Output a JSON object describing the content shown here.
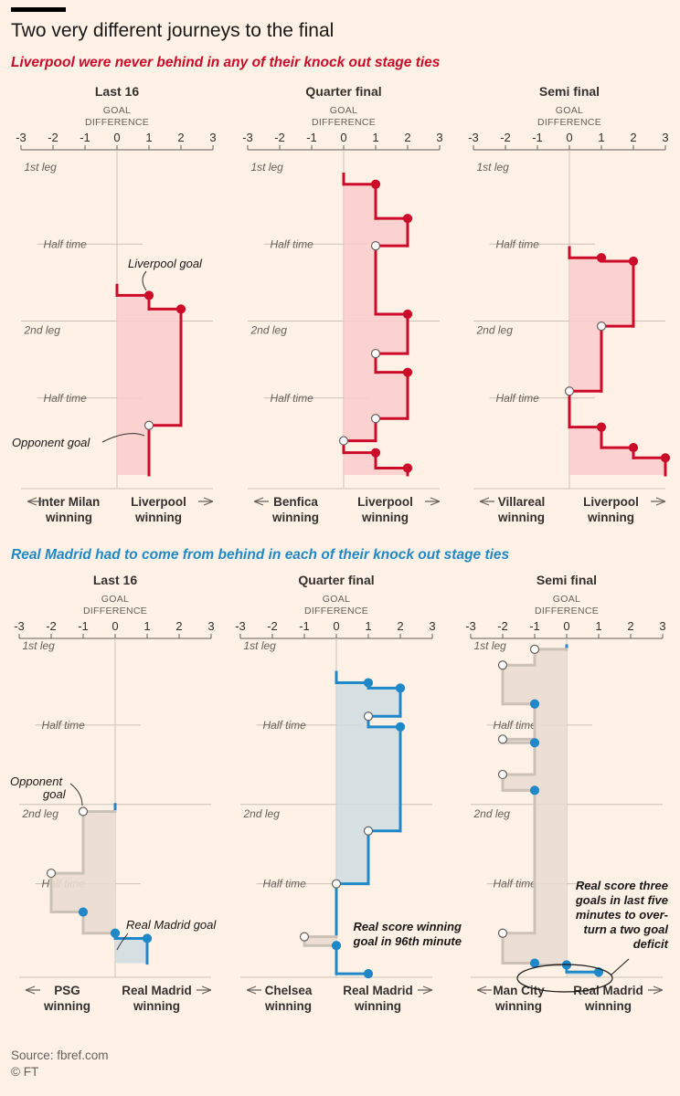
{
  "headline": "Two very different journeys to the final",
  "subheads": {
    "liverpool": "Liverpool were never behind in any of their knock out stage ties",
    "real_madrid": "Real Madrid had to come from behind in each of their knock out stage ties"
  },
  "axis": {
    "label_line1": "GOAL",
    "label_line2": "DIFFERENCE",
    "ticks": [
      "-3",
      "-2",
      "-1",
      "0",
      "1",
      "2",
      "3"
    ],
    "marker_labels": [
      "1st leg",
      "Half time",
      "2nd leg",
      "Half time"
    ]
  },
  "colors": {
    "liverpool": "#cc0a29",
    "liverpool_fill": "#fccccc",
    "real_madrid": "#1f88c8",
    "real_madrid_fill": "#cfdde2",
    "opponent_lead": "#ccc1b7",
    "opponent_fill": "#eadbd0"
  },
  "annotations": {
    "liverpool_goal": "Liverpool goal",
    "opponent_goal": "Opponent goal",
    "opponent_goal_line1": "Opponent",
    "opponent_goal_line2": "goal",
    "real_madrid_goal": "Real Madrid goal",
    "winner_96": [
      "Real score winning",
      "goal in 96th minute"
    ],
    "comeback": [
      "Real score three",
      "goals in last five",
      "minutes to over-",
      "turn a two goal",
      "deficit"
    ]
  },
  "chart_data": [
    {
      "type": "line",
      "team": "Liverpool",
      "stage": "Last 16",
      "opponent": "Inter Milan",
      "left_label": [
        "Inter Milan",
        "winning"
      ],
      "right_label": [
        "Liverpool",
        "winning"
      ],
      "xlabel": "Goal difference",
      "xlim": [
        -3,
        3
      ],
      "goals": [
        {
          "time": 75,
          "team": "Liverpool"
        },
        {
          "time": 83,
          "team": "Liverpool"
        },
        {
          "time": 151,
          "team": "Opponent"
        }
      ],
      "end_time": 180
    },
    {
      "type": "line",
      "team": "Liverpool",
      "stage": "Quarter final",
      "opponent": "Benfica",
      "left_label": [
        "Benfica",
        "winning"
      ],
      "right_label": [
        "Liverpool",
        "winning"
      ],
      "xlabel": "Goal difference",
      "xlim": [
        -3,
        3
      ],
      "goals": [
        {
          "time": 10,
          "team": "Liverpool"
        },
        {
          "time": 30,
          "team": "Liverpool"
        },
        {
          "time": 46,
          "team": "Opponent"
        },
        {
          "time": 86,
          "team": "Liverpool"
        },
        {
          "time": 109,
          "team": "Opponent"
        },
        {
          "time": 120,
          "team": "Liverpool"
        },
        {
          "time": 147,
          "team": "Opponent"
        },
        {
          "time": 160,
          "team": "Opponent"
        },
        {
          "time": 167,
          "team": "Liverpool"
        },
        {
          "time": 176,
          "team": "Liverpool"
        }
      ],
      "end_time": 180
    },
    {
      "type": "line",
      "team": "Liverpool",
      "stage": "Semi final",
      "opponent": "Villareal",
      "left_label": [
        "Villareal",
        "winning"
      ],
      "right_label": [
        "Liverpool",
        "winning"
      ],
      "xlabel": "Goal difference",
      "xlim": [
        -3,
        3
      ],
      "goals": [
        {
          "time": 53,
          "team": "Liverpool"
        },
        {
          "time": 55,
          "team": "Liverpool"
        },
        {
          "time": 93,
          "team": "Opponent"
        },
        {
          "time": 131,
          "team": "Opponent"
        },
        {
          "time": 152,
          "team": "Liverpool"
        },
        {
          "time": 164,
          "team": "Liverpool"
        },
        {
          "time": 170,
          "team": "Liverpool"
        }
      ],
      "end_time": 180
    },
    {
      "type": "line",
      "team": "Real Madrid",
      "stage": "Last 16",
      "opponent": "PSG",
      "left_label": [
        "PSG",
        "winning"
      ],
      "right_label": [
        "Real Madrid",
        "winning"
      ],
      "xlabel": "Goal difference",
      "xlim": [
        -3,
        3
      ],
      "goals": [
        {
          "time": 94,
          "team": "Opponent"
        },
        {
          "time": 129,
          "team": "Opponent"
        },
        {
          "time": 151,
          "team": "Real Madrid"
        },
        {
          "time": 163,
          "team": "Real Madrid"
        },
        {
          "time": 166,
          "team": "Real Madrid"
        }
      ],
      "end_time": 180
    },
    {
      "type": "line",
      "team": "Real Madrid",
      "stage": "Quarter final",
      "opponent": "Chelsea",
      "left_label": [
        "Chelsea",
        "winning"
      ],
      "right_label": [
        "Real Madrid",
        "winning"
      ],
      "xlabel": "Goal difference",
      "xlim": [
        -3,
        3
      ],
      "goals": [
        {
          "time": 21,
          "team": "Real Madrid"
        },
        {
          "time": 24,
          "team": "Real Madrid"
        },
        {
          "time": 40,
          "team": "Opponent"
        },
        {
          "time": 46,
          "team": "Real Madrid"
        },
        {
          "time": 105,
          "team": "Opponent"
        },
        {
          "time": 135,
          "team": "Opponent"
        },
        {
          "time": 165,
          "team": "Opponent"
        },
        {
          "time": 170,
          "team": "Real Madrid"
        },
        {
          "time": 186,
          "team": "Real Madrid"
        }
      ],
      "end_time": 186
    },
    {
      "type": "line",
      "team": "Real Madrid",
      "stage": "Semi final",
      "opponent": "Man City",
      "left_label": [
        "Man City",
        "winning"
      ],
      "right_label": [
        "Real Madrid",
        "winning"
      ],
      "xlabel": "Goal difference",
      "xlim": [
        -3,
        3
      ],
      "goals": [
        {
          "time": 2,
          "team": "Opponent"
        },
        {
          "time": 11,
          "team": "Opponent"
        },
        {
          "time": 33,
          "team": "Real Madrid"
        },
        {
          "time": 53,
          "team": "Opponent"
        },
        {
          "time": 55,
          "team": "Real Madrid"
        },
        {
          "time": 73,
          "team": "Opponent"
        },
        {
          "time": 82,
          "team": "Real Madrid"
        },
        {
          "time": 163,
          "team": "Opponent"
        },
        {
          "time": 180,
          "team": "Real Madrid"
        },
        {
          "time": 181,
          "team": "Real Madrid"
        },
        {
          "time": 185,
          "team": "Real Madrid"
        }
      ],
      "end_time": 187
    }
  ],
  "source": "Source: fbref.com",
  "copyright": "© FT"
}
